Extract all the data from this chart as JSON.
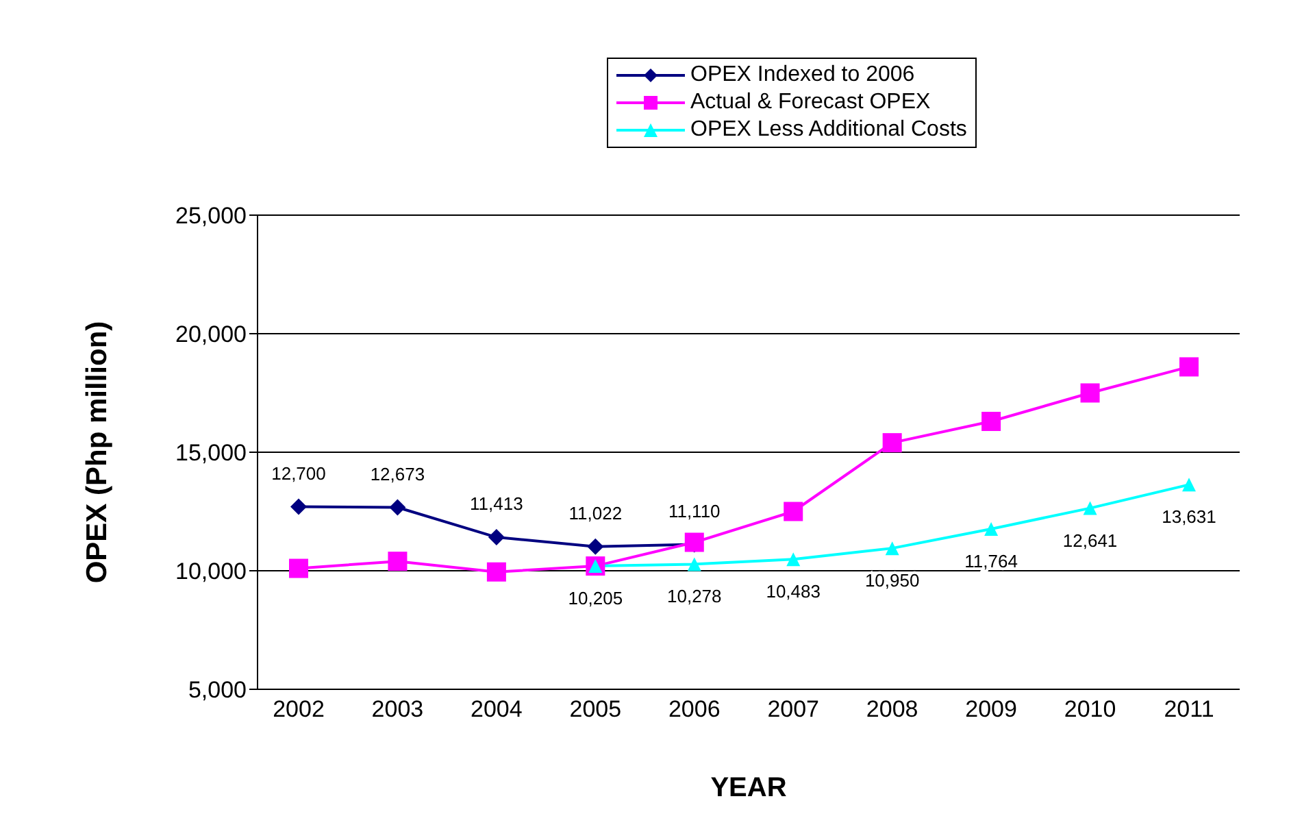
{
  "chart_data": {
    "type": "line",
    "xlabel": "YEAR",
    "ylabel": "OPEX (Php million)",
    "categories": [
      "2002",
      "2003",
      "2004",
      "2005",
      "2006",
      "2007",
      "2008",
      "2009",
      "2010",
      "2011"
    ],
    "series": [
      {
        "name": "OPEX Indexed to 2006",
        "color": "#000080",
        "marker": "diamond",
        "values": [
          12700,
          12673,
          11413,
          11022,
          11110,
          null,
          null,
          null,
          null,
          null
        ],
        "value_labels": [
          "12,700",
          "12,673",
          "11,413",
          "11,022",
          "11,110",
          null,
          null,
          null,
          null,
          null
        ]
      },
      {
        "name": "Actual & Forecast OPEX",
        "color": "#ff00ff",
        "marker": "square",
        "values": [
          10100,
          10400,
          9950,
          10200,
          11200,
          12500,
          15400,
          16300,
          17500,
          18600
        ]
      },
      {
        "name": "OPEX Less Additional Costs",
        "color": "#00ffff",
        "marker": "triangle",
        "values": [
          null,
          null,
          null,
          10205,
          10278,
          10483,
          10950,
          11764,
          12641,
          13631
        ],
        "value_labels": [
          null,
          null,
          null,
          "10,205",
          "10,278",
          "10,483",
          "10,950",
          "11,764",
          "12,641",
          "13,631"
        ]
      }
    ],
    "ylim": [
      5000,
      25000
    ],
    "yticks": [
      {
        "value": 5000,
        "label": "5,000"
      },
      {
        "value": 10000,
        "label": "10,000"
      },
      {
        "value": 15000,
        "label": "15,000"
      },
      {
        "value": 20000,
        "label": "20,000"
      },
      {
        "value": 25000,
        "label": "25,000"
      }
    ],
    "grid": "y",
    "legend": "top",
    "line_style": "solid"
  }
}
